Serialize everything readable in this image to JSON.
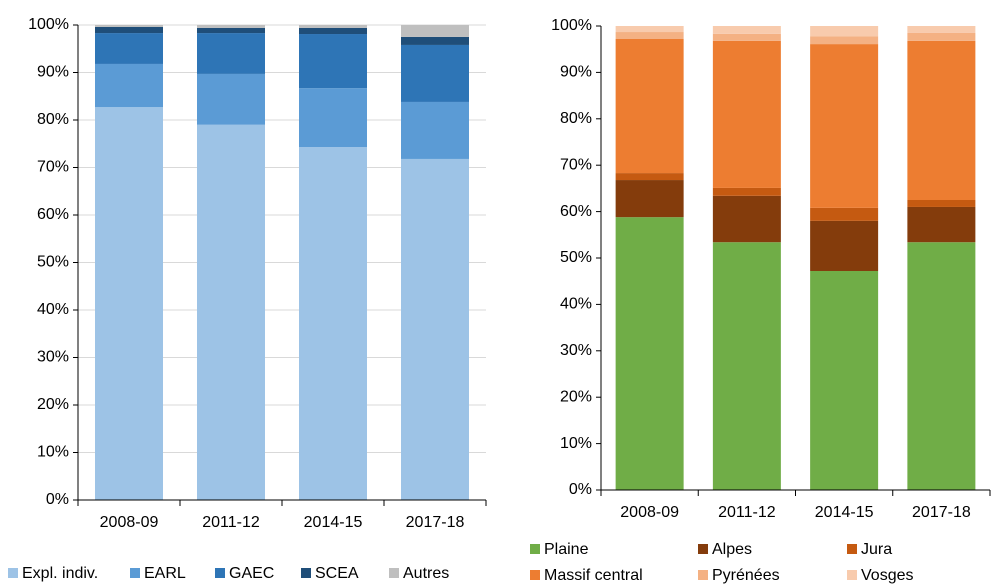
{
  "chart_data": [
    {
      "type": "bar",
      "stacked": true,
      "categories": [
        "2008-09",
        "2011-12",
        "2014-15",
        "2017-18"
      ],
      "series": [
        {
          "name": "Expl. indiv.",
          "color": "#9dc3e6",
          "values": [
            82.7,
            79,
            74.3,
            71.8
          ]
        },
        {
          "name": "EARL",
          "color": "#5b9bd5",
          "values": [
            9.1,
            10.7,
            12.4,
            12
          ]
        },
        {
          "name": "GAEC",
          "color": "#2e75b6",
          "values": [
            6.5,
            8.6,
            11.4,
            12
          ]
        },
        {
          "name": "SCEA",
          "color": "#1f4e79",
          "values": [
            1.3,
            1.1,
            1.3,
            1.7
          ]
        },
        {
          "name": "Autres",
          "color": "#bfbfbf",
          "values": [
            0.4,
            0.6,
            0.6,
            2.5
          ]
        }
      ],
      "ylim": [
        0,
        100
      ],
      "yticks": [
        {
          "value": 0,
          "label": "0%"
        },
        {
          "value": 10,
          "label": "10%"
        },
        {
          "value": 20,
          "label": "20%"
        },
        {
          "value": 30,
          "label": "30%"
        },
        {
          "value": 40,
          "label": "40%"
        },
        {
          "value": 50,
          "label": "50%"
        },
        {
          "value": 60,
          "label": "60%"
        },
        {
          "value": 70,
          "label": "70%"
        },
        {
          "value": 80,
          "label": "80%"
        },
        {
          "value": 90,
          "label": "90%"
        },
        {
          "value": 100,
          "label": "100%"
        }
      ],
      "grid": true,
      "legend": "bottom"
    },
    {
      "type": "bar",
      "stacked": true,
      "categories": [
        "2008-09",
        "2011-12",
        "2014-15",
        "2017-18"
      ],
      "series": [
        {
          "name": "Plaine",
          "color": "#70ad47",
          "values": [
            58.8,
            53.4,
            47.2,
            53.4
          ]
        },
        {
          "name": "Alpes",
          "color": "#843c0c",
          "values": [
            8,
            10,
            10.8,
            7.6
          ]
        },
        {
          "name": "Jura",
          "color": "#c55a11",
          "values": [
            1.5,
            1.7,
            2.8,
            1.5
          ]
        },
        {
          "name": "Massif central",
          "color": "#ed7d31",
          "values": [
            28.9,
            31.7,
            35.3,
            34.3
          ]
        },
        {
          "name": "Pyrénées",
          "color": "#f4b183",
          "values": [
            1.5,
            1.5,
            1.7,
            1.7
          ]
        },
        {
          "name": "Vosges",
          "color": "#f8cbad",
          "values": [
            1.3,
            1.7,
            2.2,
            1.5
          ]
        }
      ],
      "ylim": [
        0,
        100
      ],
      "yticks": [
        {
          "value": 0,
          "label": "0%"
        },
        {
          "value": 10,
          "label": "10%"
        },
        {
          "value": 20,
          "label": "20%"
        },
        {
          "value": 30,
          "label": "30%"
        },
        {
          "value": 40,
          "label": "40%"
        },
        {
          "value": 50,
          "label": "50%"
        },
        {
          "value": 60,
          "label": "60%"
        },
        {
          "value": 70,
          "label": "70%"
        },
        {
          "value": 80,
          "label": "80%"
        },
        {
          "value": 90,
          "label": "90%"
        },
        {
          "value": 100,
          "label": "100%"
        }
      ],
      "grid": false,
      "legend": "bottom"
    }
  ]
}
